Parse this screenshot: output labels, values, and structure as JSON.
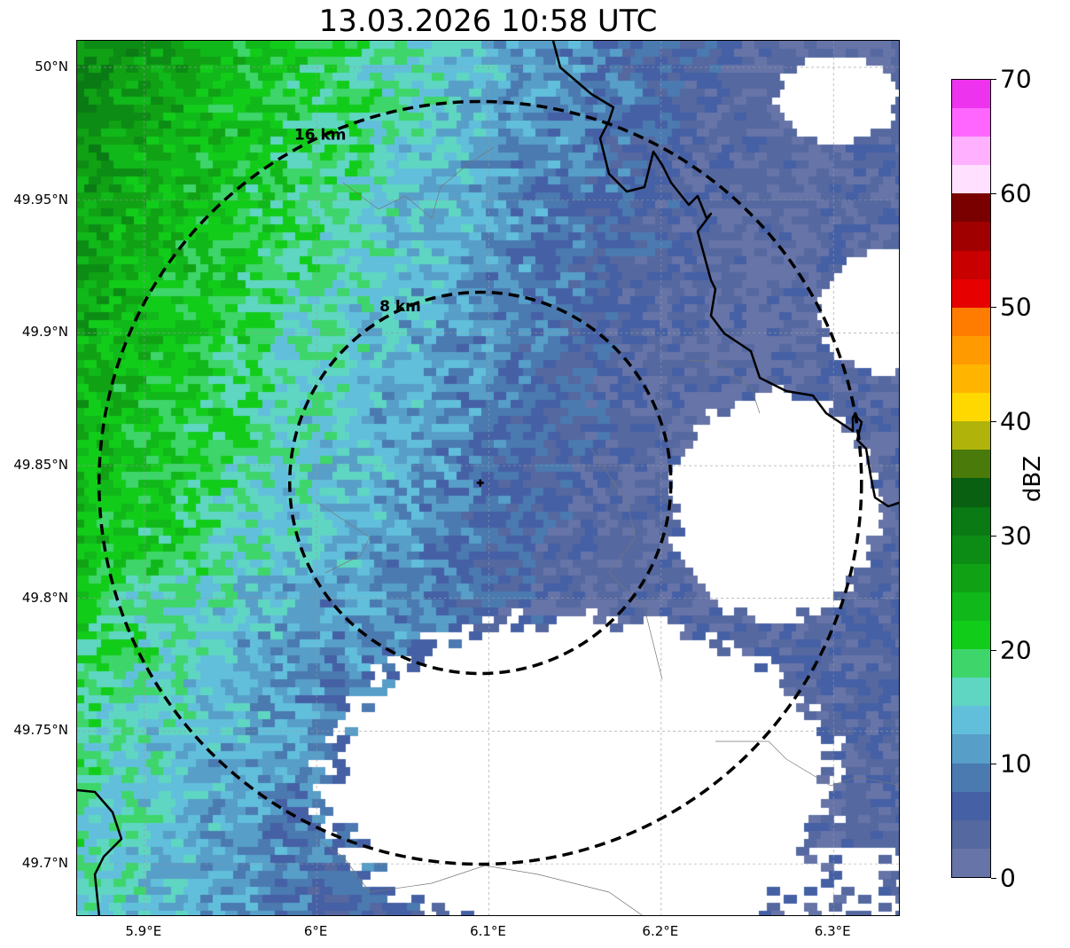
{
  "chart_data": {
    "type": "heatmap",
    "title": "13.03.2026 10:58 UTC",
    "xlabel": "",
    "ylabel": "",
    "xlim": [
      5.861,
      6.339
    ],
    "ylim": [
      49.68,
      50.01
    ],
    "x_ticks": [
      {
        "value": 5.9,
        "label": "5.9°E"
      },
      {
        "value": 6.0,
        "label": "6°E"
      },
      {
        "value": 6.1,
        "label": "6.1°E"
      },
      {
        "value": 6.2,
        "label": "6.2°E"
      },
      {
        "value": 6.3,
        "label": "6.3°E"
      }
    ],
    "y_ticks": [
      {
        "value": 50.0,
        "label": "50°N"
      },
      {
        "value": 49.95,
        "label": "49.95°N"
      },
      {
        "value": 49.9,
        "label": "49.9°N"
      },
      {
        "value": 49.85,
        "label": "49.85°N"
      },
      {
        "value": 49.8,
        "label": "49.8°N"
      },
      {
        "value": 49.75,
        "label": "49.75°N"
      },
      {
        "value": 49.7,
        "label": "49.7°N"
      }
    ],
    "grid": true,
    "radar_center": {
      "lon": 6.095,
      "lat": 49.8435
    },
    "range_rings": [
      {
        "radius_km": 8,
        "label": "8 km"
      },
      {
        "radius_km": 16,
        "label": "16 km"
      }
    ],
    "colorbar": {
      "label": "dBZ",
      "range": [
        0,
        70
      ],
      "step": 2.5,
      "ticks": [
        "0",
        "10",
        "20",
        "30",
        "40",
        "50",
        "60",
        "70"
      ],
      "colors": [
        "#6674a8",
        "#5568a0",
        "#4560a5",
        "#4a7ab0",
        "#579ec8",
        "#62bfdc",
        "#5fd6c2",
        "#3ed66a",
        "#12cc1a",
        "#10b81a",
        "#10a214",
        "#0c8c14",
        "#0a7a14",
        "#086010",
        "#4a7a0a",
        "#b0b40a",
        "#ffd800",
        "#ffb400",
        "#ff9a00",
        "#ff7c00",
        "#e60000",
        "#c80000",
        "#a00000",
        "#7a0000",
        "#ffe0ff",
        "#ffb0ff",
        "#ff66ff",
        "#ee33ee"
      ]
    }
  }
}
